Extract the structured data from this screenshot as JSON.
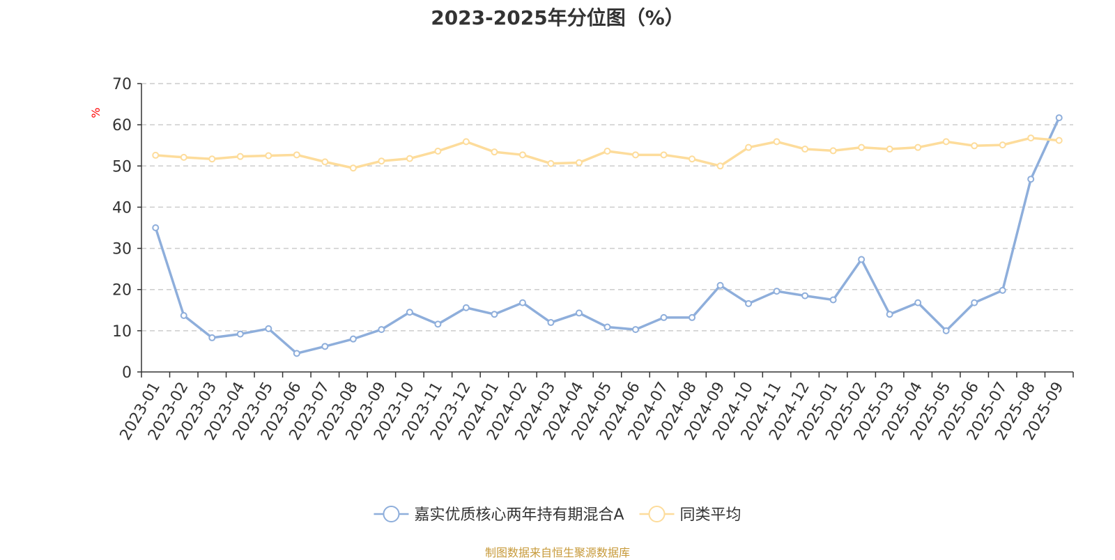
{
  "title": "2023-2025年分位图（%）",
  "source_note": "制图数据来自恒生聚源数据库",
  "colors": {
    "series1": "#8eaedb",
    "series2": "#fddc9b",
    "grid": "#cccccc",
    "axis": "#333333",
    "unit": "#ff0000",
    "source": "#c79a3a"
  },
  "chart_data": {
    "type": "line",
    "title": "2023-2025年分位图（%）",
    "ylabel": "%",
    "xlabel": "",
    "ylim": [
      0,
      70
    ],
    "yticks": [
      0,
      10,
      20,
      30,
      40,
      50,
      60,
      70
    ],
    "grid": true,
    "legend_position": "bottom",
    "categories": [
      "2023-01",
      "2023-02",
      "2023-03",
      "2023-04",
      "2023-05",
      "2023-06",
      "2023-07",
      "2023-08",
      "2023-09",
      "2023-10",
      "2023-11",
      "2023-12",
      "2024-01",
      "2024-02",
      "2024-03",
      "2024-04",
      "2024-05",
      "2024-06",
      "2024-07",
      "2024-08",
      "2024-09",
      "2024-10",
      "2024-11",
      "2024-12",
      "2025-01",
      "2025-02",
      "2025-03",
      "2025-04",
      "2025-05",
      "2025-06",
      "2025-07",
      "2025-08",
      "2025-09"
    ],
    "series": [
      {
        "name": "嘉实优质核心两年持有期混合A",
        "color": "#8eaedb",
        "values": [
          35.0,
          13.7,
          8.3,
          9.2,
          10.5,
          4.5,
          6.2,
          8.0,
          10.3,
          14.5,
          11.6,
          15.6,
          14.0,
          16.8,
          12.0,
          14.3,
          10.9,
          10.3,
          13.2,
          13.2,
          21.0,
          16.6,
          19.6,
          18.5,
          17.5,
          27.3,
          14.0,
          16.8,
          10.0,
          16.8,
          19.8,
          46.8,
          61.7
        ]
      },
      {
        "name": "同类平均",
        "color": "#fddc9b",
        "values": [
          52.6,
          52.1,
          51.7,
          52.3,
          52.5,
          52.7,
          51.0,
          49.5,
          51.2,
          51.8,
          53.6,
          55.9,
          53.4,
          52.7,
          50.6,
          50.8,
          53.6,
          52.7,
          52.7,
          51.7,
          50.0,
          54.5,
          55.9,
          54.1,
          53.7,
          54.5,
          54.1,
          54.5,
          55.9,
          54.9,
          55.1,
          56.8,
          56.2
        ]
      }
    ]
  }
}
